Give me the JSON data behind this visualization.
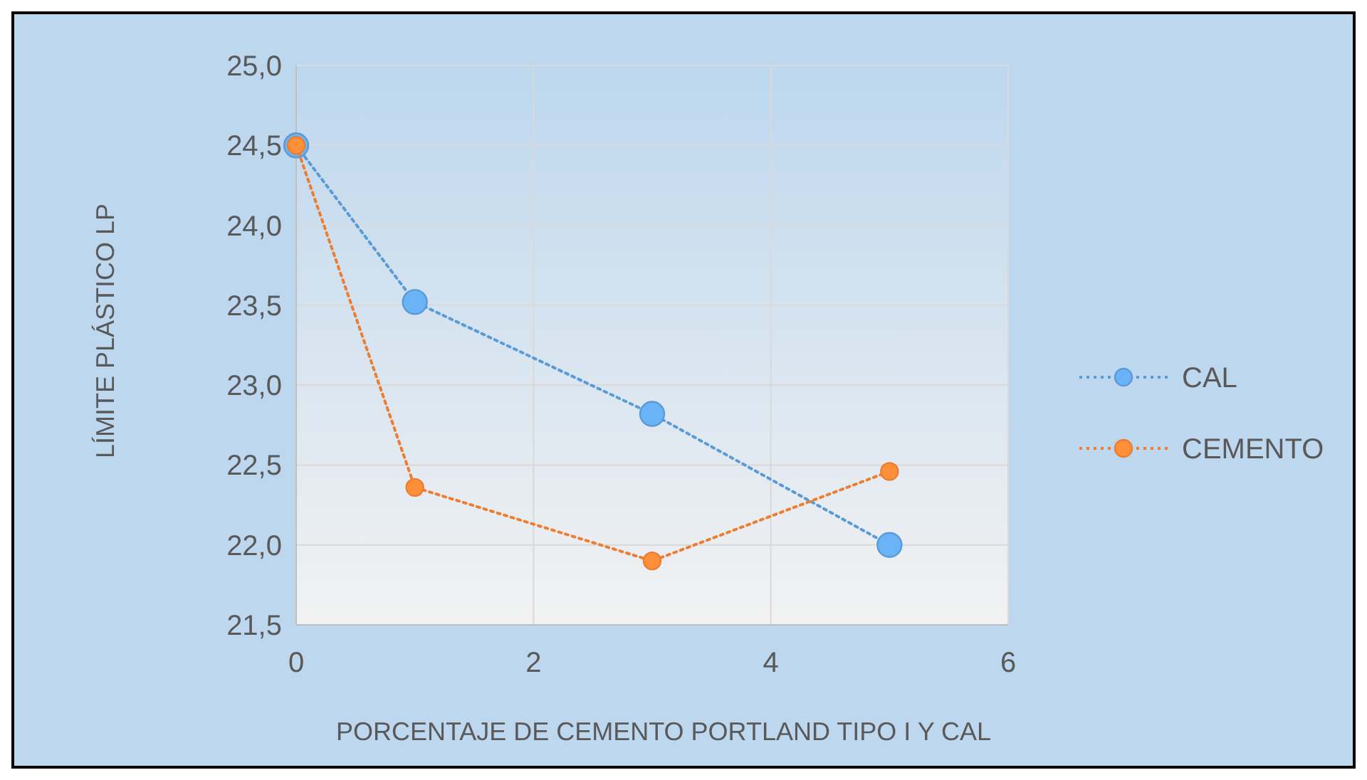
{
  "chart_data": {
    "type": "line",
    "xlabel": "PORCENTAJE DE CEMENTO PORTLAND TIPO I  Y CAL",
    "ylabel": "LÍMITE PLÁSTICO LP",
    "x": [
      0,
      1,
      3,
      5
    ],
    "series": [
      {
        "name": "CAL",
        "color": "#5b9bd5",
        "values": [
          24.5,
          23.52,
          22.82,
          22.0
        ]
      },
      {
        "name": "CEMENTO",
        "color": "#ed7d31",
        "values": [
          24.5,
          22.36,
          21.9,
          22.46
        ]
      }
    ],
    "xlim": [
      0,
      6
    ],
    "xticks": [
      0,
      2,
      4,
      6
    ],
    "ylim": [
      21.5,
      25
    ],
    "yticks": [
      {
        "value": 21.5,
        "label": "21,5"
      },
      {
        "value": 22,
        "label": "22,0"
      },
      {
        "value": 22.5,
        "label": "22,5"
      },
      {
        "value": 23,
        "label": "23,0"
      },
      {
        "value": 23.5,
        "label": "23,5"
      },
      {
        "value": 24,
        "label": "24,0"
      },
      {
        "value": 24.5,
        "label": "24,5"
      },
      {
        "value": 25,
        "label": "25,0"
      }
    ],
    "grid": true,
    "legend": "right",
    "marker": "circle",
    "line_style": "dotted"
  }
}
